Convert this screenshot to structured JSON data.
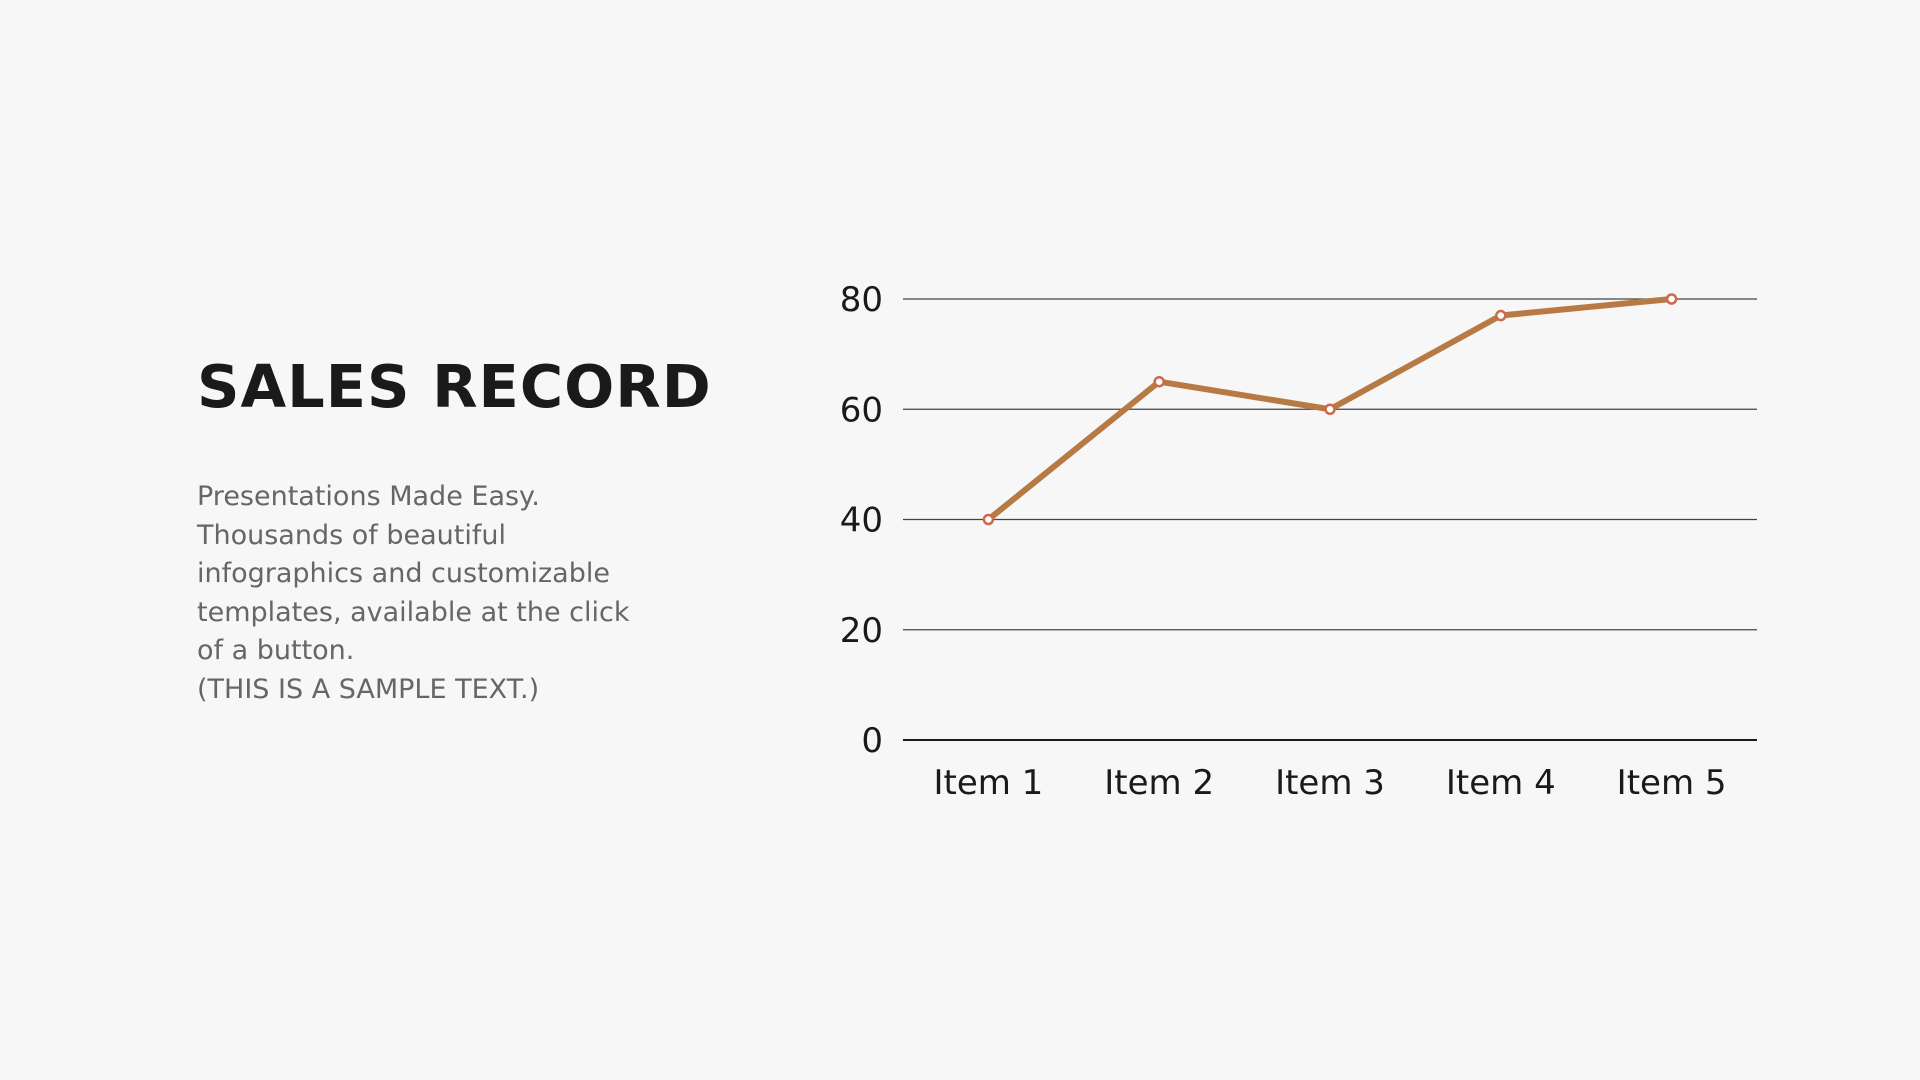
{
  "slide": {
    "title": "SALES RECORD",
    "body": "Presentations Made Easy.\nThousands of beautiful\ninfographics and customizable\ntemplates, available at the click\nof a button.\n (THIS IS A SAMPLE TEXT.)"
  },
  "chart_data": {
    "type": "line",
    "categories": [
      "Item 1",
      "Item 2",
      "Item 3",
      "Item 4",
      "Item 5"
    ],
    "series": [
      {
        "values": [
          40,
          65,
          60,
          77,
          80
        ],
        "color": "#b87a45",
        "marker_color": "#cc6a4a"
      }
    ],
    "ylim": [
      0,
      80
    ],
    "yticks": [
      0,
      20,
      40,
      60,
      80
    ],
    "grid": true,
    "legend": "none"
  }
}
